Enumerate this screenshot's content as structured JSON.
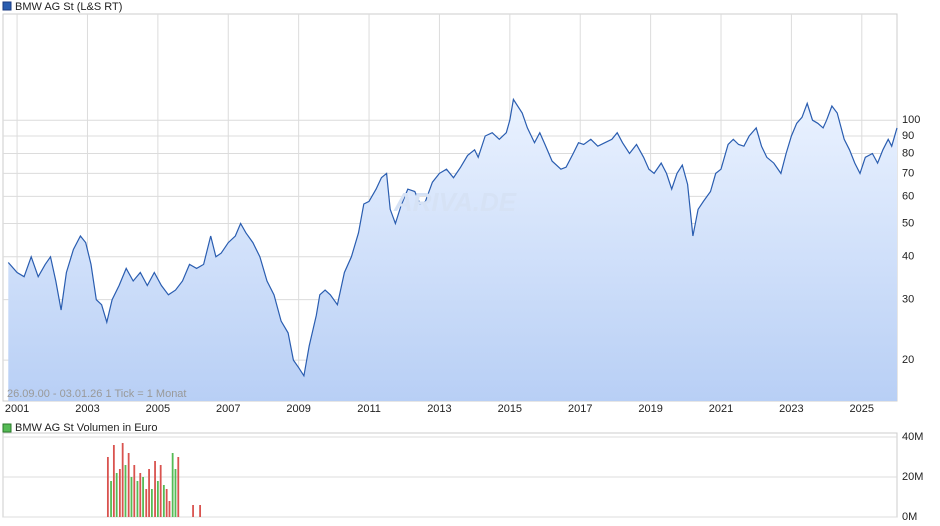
{
  "chart_data": [
    {
      "type": "line",
      "title": "BMW AG St (L&S RT)",
      "annotation": "26.09.00 - 03.01.26   1 Tick = 1 Monat",
      "watermark": "ARIVA.DE",
      "color": "#2a5db0",
      "log_scale": true,
      "grid": true,
      "xlim": [
        2000.6,
        2026.0
      ],
      "xticks": [
        2001,
        2003,
        2005,
        2007,
        2009,
        2011,
        2013,
        2015,
        2017,
        2019,
        2021,
        2023,
        2025
      ],
      "ylim": [
        15.2,
        204
      ],
      "yticks": [
        20,
        30,
        40,
        50,
        60,
        70,
        80,
        90,
        100
      ],
      "x": [
        2000.75,
        2001.0,
        2001.2,
        2001.4,
        2001.6,
        2001.8,
        2001.95,
        2002.1,
        2002.25,
        2002.4,
        2002.6,
        2002.8,
        2002.95,
        2003.1,
        2003.25,
        2003.4,
        2003.55,
        2003.7,
        2003.9,
        2004.1,
        2004.3,
        2004.5,
        2004.7,
        2004.9,
        2005.1,
        2005.3,
        2005.5,
        2005.7,
        2005.9,
        2006.1,
        2006.3,
        2006.5,
        2006.65,
        2006.8,
        2007.0,
        2007.2,
        2007.35,
        2007.5,
        2007.7,
        2007.9,
        2008.1,
        2008.3,
        2008.5,
        2008.7,
        2008.85,
        2009.0,
        2009.15,
        2009.3,
        2009.5,
        2009.6,
        2009.75,
        2009.9,
        2010.1,
        2010.3,
        2010.5,
        2010.7,
        2010.85,
        2011.0,
        2011.2,
        2011.35,
        2011.5,
        2011.6,
        2011.75,
        2011.9,
        2012.1,
        2012.3,
        2012.45,
        2012.6,
        2012.8,
        2013.0,
        2013.2,
        2013.4,
        2013.6,
        2013.8,
        2014.0,
        2014.1,
        2014.3,
        2014.5,
        2014.7,
        2014.9,
        2015.0,
        2015.1,
        2015.35,
        2015.5,
        2015.7,
        2015.85,
        2016.0,
        2016.2,
        2016.45,
        2016.6,
        2016.8,
        2016.95,
        2017.1,
        2017.3,
        2017.5,
        2017.7,
        2017.9,
        2018.05,
        2018.2,
        2018.4,
        2018.6,
        2018.8,
        2018.95,
        2019.1,
        2019.3,
        2019.45,
        2019.6,
        2019.75,
        2019.9,
        2020.05,
        2020.2,
        2020.35,
        2020.5,
        2020.7,
        2020.85,
        2021.0,
        2021.2,
        2021.35,
        2021.5,
        2021.65,
        2021.8,
        2022.0,
        2022.15,
        2022.3,
        2022.5,
        2022.7,
        2022.85,
        2023.0,
        2023.15,
        2023.3,
        2023.45,
        2023.6,
        2023.75,
        2023.9,
        2024.0,
        2024.15,
        2024.3,
        2024.5,
        2024.65,
        2024.8,
        2024.95,
        2025.1,
        2025.3,
        2025.45,
        2025.6,
        2025.75,
        2025.85,
        2026.0
      ],
      "values": [
        38.5,
        36,
        35,
        40,
        35,
        38,
        40,
        34,
        28,
        36,
        42,
        46,
        44,
        38,
        30,
        29,
        25.8,
        30,
        33,
        37,
        34,
        36,
        33,
        36,
        33,
        31,
        32,
        34,
        38,
        37,
        38,
        46,
        40,
        41,
        44,
        46,
        50,
        47,
        44,
        40,
        34,
        31,
        26,
        24,
        20,
        19,
        18,
        22,
        27,
        31,
        32,
        31,
        29,
        36,
        40,
        47,
        57,
        58,
        63,
        68,
        70,
        55,
        50,
        56,
        63,
        62,
        57,
        58,
        66,
        70,
        72,
        68,
        73,
        79,
        82,
        78,
        90,
        92,
        88,
        92,
        100,
        115,
        105,
        95,
        86,
        92,
        85,
        76,
        72,
        73,
        80,
        86,
        85,
        88,
        84,
        86,
        88,
        92,
        86,
        80,
        85,
        78,
        72,
        70,
        75,
        70,
        63,
        70,
        74,
        65,
        46,
        55,
        58,
        62,
        70,
        72,
        85,
        88,
        85,
        84,
        90,
        95,
        84,
        78,
        75,
        70,
        80,
        90,
        98,
        102,
        112,
        100,
        98,
        95,
        100,
        110,
        105,
        88,
        82,
        75,
        70,
        78,
        80,
        75,
        82,
        88,
        84,
        95
      ]
    },
    {
      "type": "bar",
      "title": "BMW AG St Volumen in Euro",
      "color": "#55bb55",
      "xlim": [
        2000.6,
        2026.0
      ],
      "ylim": [
        0,
        42000000
      ],
      "yticks": [
        {
          "value": 0,
          "label": "0M"
        },
        {
          "value": 20000000,
          "label": "20M"
        },
        {
          "value": 40000000,
          "label": "40M"
        }
      ],
      "x": [
        2003.58,
        2003.67,
        2003.75,
        2003.83,
        2003.92,
        2004.0,
        2004.08,
        2004.17,
        2004.25,
        2004.33,
        2004.42,
        2004.5,
        2004.58,
        2004.67,
        2004.75,
        2004.83,
        2004.92,
        2005.0,
        2005.08,
        2005.17,
        2005.25,
        2005.33,
        2005.42,
        2005.5,
        2005.58,
        2006.0,
        2006.2
      ],
      "values": [
        30000000,
        18000000,
        36000000,
        22000000,
        24000000,
        37000000,
        26000000,
        32000000,
        20000000,
        26000000,
        18000000,
        22000000,
        20000000,
        14000000,
        24000000,
        14000000,
        28000000,
        18000000,
        26000000,
        16000000,
        14000000,
        8000000,
        32000000,
        24000000,
        30000000,
        6000000,
        6000000
      ],
      "colors": [
        "#d9534f",
        "#55bb55",
        "#d9534f",
        "#55bb55",
        "#d9534f",
        "#d9534f",
        "#55bb55",
        "#d9534f",
        "#55bb55",
        "#d9534f",
        "#55bb55",
        "#d9534f",
        "#55bb55",
        "#d9534f",
        "#d9534f",
        "#55bb55",
        "#d9534f",
        "#55bb55",
        "#d9534f",
        "#55bb55",
        "#d9534f",
        "#d9534f",
        "#55bb55",
        "#55bb55",
        "#d9534f",
        "#d9534f",
        "#d9534f"
      ]
    }
  ]
}
